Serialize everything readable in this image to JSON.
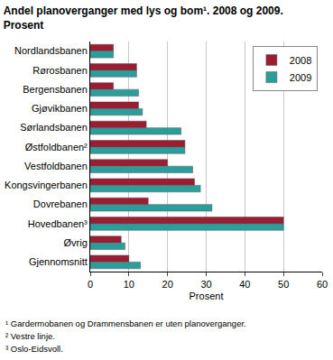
{
  "chart_data": {
    "type": "bar",
    "orientation": "horizontal",
    "title": "Andel planoverganger med lys og bom¹. 2008 og 2009.",
    "subtitle": "Prosent",
    "x_label": "Prosent",
    "categories": [
      "Nordlandsbanen",
      "Rørosbanen",
      "Bergensbanen",
      "Gjøvikbanen",
      "Sørlandsbanen",
      "Østfoldbanen²",
      "Vestfoldbanen",
      "Kongsvingerbanen",
      "Dovrebanen",
      "Hovedbanen³",
      "Øvrig",
      "Gjennomsnitt"
    ],
    "series": [
      {
        "name": "2008",
        "color": "#9c1c32",
        "values": [
          6,
          12,
          6,
          12.5,
          14.5,
          24.5,
          20,
          27,
          15,
          50,
          8,
          10
        ]
      },
      {
        "name": "2009",
        "color": "#2b9e9c",
        "values": [
          6,
          12,
          12.5,
          13.5,
          23.5,
          24.5,
          26.5,
          28.5,
          31.5,
          50,
          9,
          13
        ]
      }
    ],
    "xlim": [
      0,
      60
    ],
    "xticks": [
      0,
      10,
      20,
      30,
      40,
      50,
      60
    ],
    "grid": true,
    "legend": "upper right",
    "annotations": [
      "¹ Gardermobanen og Drammensbanen er uten planoverganger.",
      "² Vestre linje.",
      "³ Oslo-Eidsvoll."
    ]
  }
}
